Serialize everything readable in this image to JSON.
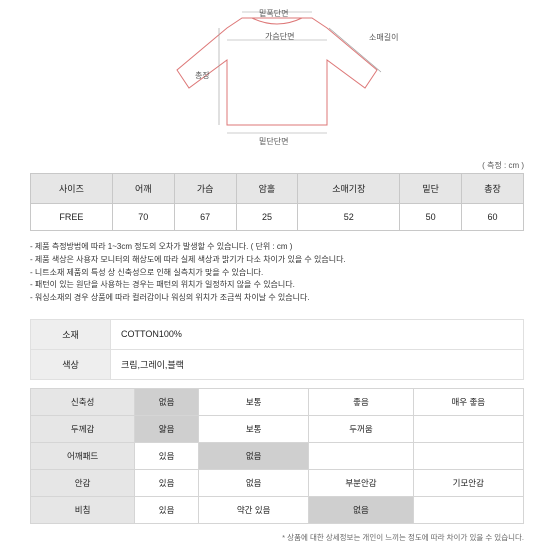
{
  "unit_note": "( 측정 : cm )",
  "diagram_labels": {
    "neck": "밑폭단면",
    "chest": "가슴단면",
    "sleeve": "소매길이",
    "length": "총장",
    "hem": "밑단단면"
  },
  "size_table": {
    "headers": [
      "사이즈",
      "어깨",
      "가슴",
      "암홀",
      "소매기장",
      "밑단",
      "총장"
    ],
    "row": [
      "FREE",
      "70",
      "67",
      "25",
      "52",
      "50",
      "60"
    ]
  },
  "notes": [
    "- 제품 측정방법에 따라 1~3cm 정도의 오차가 발생할 수 있습니다. ( 단위 : cm )",
    "- 제품 색상은 사용자 모니터의 해상도에 따라 실제 색상과 밝기가 다소 차이가 있을 수 있습니다.",
    "- 니트소재 제품의 특성 상 신축성으로 인해 실측치가 맞을 수 있습니다.",
    "- 패턴이 있는 원단을 사용하는 경우는 패턴의 위치가 일정하지 않을 수 있습니다.",
    "- 워싱소재의 경우 상품에 따라 컬러감이나 워싱의 위치가 조금씩 차이날 수 있습니다."
  ],
  "material": {
    "rows": [
      {
        "label": "소재",
        "value": "COTTON100%"
      },
      {
        "label": "색상",
        "value": "크림,그레이,블랙"
      }
    ]
  },
  "attributes": {
    "header_labels": [
      "신축성",
      "없음",
      "보통",
      "좋음",
      "매우 좋음"
    ],
    "rows": [
      {
        "label": "신축성",
        "cells": [
          "없음",
          "보통",
          "좋음",
          "매우 좋음"
        ],
        "selected": 0
      },
      {
        "label": "두께감",
        "cells": [
          "얇음",
          "보통",
          "두꺼움",
          ""
        ],
        "selected": 0
      },
      {
        "label": "어깨패드",
        "cells": [
          "있음",
          "없음",
          "",
          ""
        ],
        "selected": 1
      },
      {
        "label": "안감",
        "cells": [
          "있음",
          "없음",
          "부분안감",
          "기모안감"
        ],
        "selected": -1
      },
      {
        "label": "비침",
        "cells": [
          "있음",
          "약간 있음",
          "없음",
          ""
        ],
        "selected": 2
      }
    ]
  },
  "footnote": "* 상품에 대한 상세정보는 개인이 느끼는 정도에 따라 차이가 있을 수 있습니다."
}
